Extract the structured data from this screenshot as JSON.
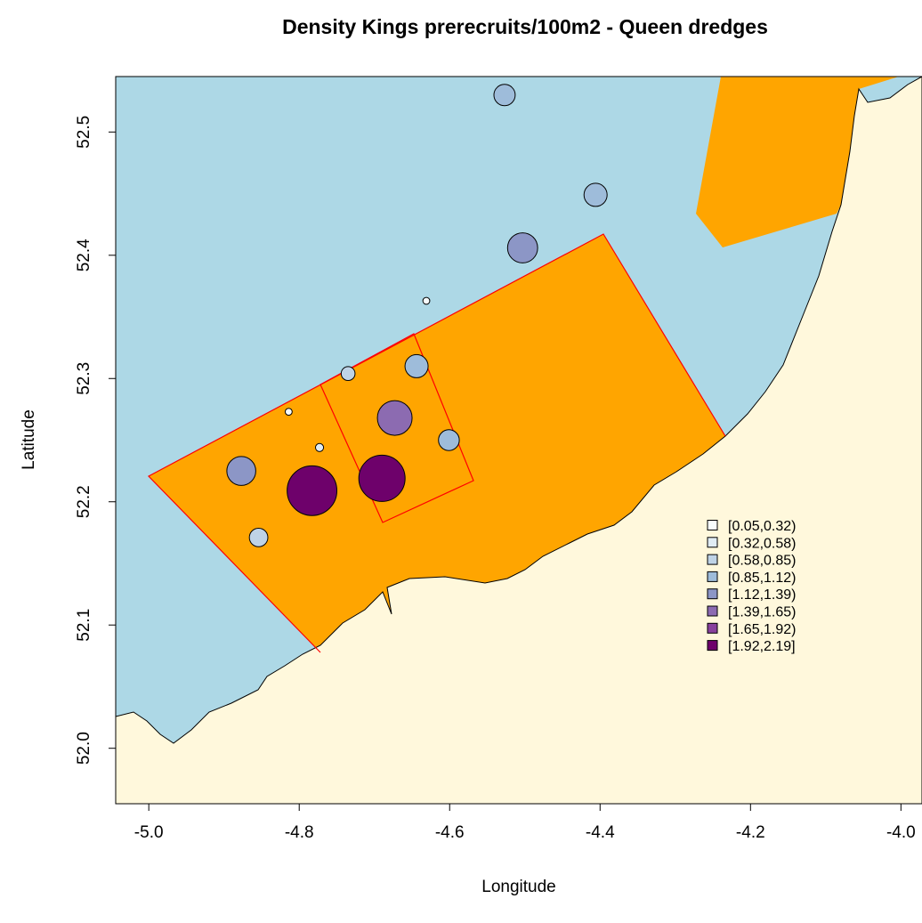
{
  "chart_data": {
    "type": "bubble",
    "title": "Density Kings prerecruits/100m2 - Queen dredges",
    "x_label": "Longitude",
    "y_label": "Latitude",
    "xlim": [
      -5.044,
      -3.972
    ],
    "ylim": [
      51.955,
      52.545
    ],
    "xticks": [
      {
        "value": -5.0,
        "label": "-5.0"
      },
      {
        "value": -4.8,
        "label": "-4.8"
      },
      {
        "value": -4.6,
        "label": "-4.6"
      },
      {
        "value": -4.4,
        "label": "-4.4"
      },
      {
        "value": -4.2,
        "label": "-4.2"
      },
      {
        "value": -4.0,
        "label": "-4.0"
      }
    ],
    "yticks": [
      {
        "value": 52.0,
        "label": "52.0"
      },
      52.1,
      52.2,
      52.3,
      52.4,
      52.5
    ],
    "x": [
      -4.527,
      -4.406,
      -4.503,
      -4.631,
      -4.735,
      -4.644,
      -4.814,
      -4.673,
      -4.601,
      -4.773,
      -4.877,
      -4.783,
      -4.69,
      -4.854
    ],
    "y": [
      52.53,
      52.449,
      52.406,
      52.363,
      52.304,
      52.31,
      52.273,
      52.268,
      52.25,
      52.244,
      52.225,
      52.209,
      52.219,
      52.171
    ],
    "values": [
      0.92,
      1.0,
      1.3,
      0.3,
      0.6,
      1.0,
      0.3,
      1.5,
      0.9,
      0.35,
      1.25,
      2.15,
      2.0,
      0.8
    ],
    "legend": {
      "labels": [
        "[0.05,0.32)",
        "[0.32,0.58)",
        "[0.58,0.85)",
        "[0.85,1.12)",
        "[1.12,1.39)",
        "[1.39,1.65)",
        "[1.65,1.92)",
        "[1.92,2.19]"
      ],
      "breaks": [
        0.05,
        0.32,
        0.58,
        0.85,
        1.12,
        1.39,
        1.65,
        1.92,
        2.19
      ],
      "colors": [
        "#f7fcfd",
        "#e0ecf4",
        "#bfd3e6",
        "#9ebcda",
        "#8c96c6",
        "#8c6bb1",
        "#88419d",
        "#6e016b"
      ]
    }
  }
}
